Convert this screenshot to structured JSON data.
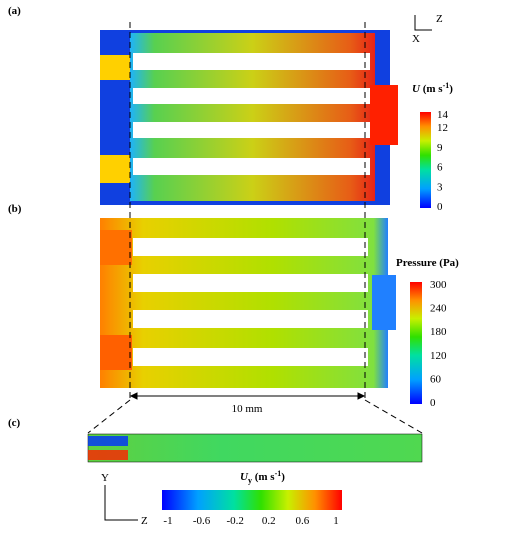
{
  "panels": [
    {
      "label": "(a)"
    },
    {
      "label": "(b)"
    },
    {
      "label": "(c)"
    }
  ],
  "axes_a": {
    "horizontal": "Z",
    "vertical": "X"
  },
  "axes_c": {
    "vertical": "Y",
    "horizontal": "Z"
  },
  "dimension": "10 mm",
  "colorbars": {
    "velocity": {
      "symbol": "U",
      "unit_open": " (m s",
      "unit_power": "-1",
      "unit_close": ")",
      "ticks": [
        0,
        3,
        6,
        9,
        12,
        14
      ]
    },
    "pressure": {
      "title": "Pressure (Pa)",
      "ticks": [
        0,
        60,
        120,
        180,
        240,
        300
      ]
    },
    "uy": {
      "symbol": "U",
      "subscript": "y",
      "unit_open": " (m s",
      "unit_power": "-1",
      "unit_close": ")",
      "ticks": [
        -1,
        -0.6,
        -0.2,
        0.2,
        0.6,
        1
      ]
    }
  }
}
